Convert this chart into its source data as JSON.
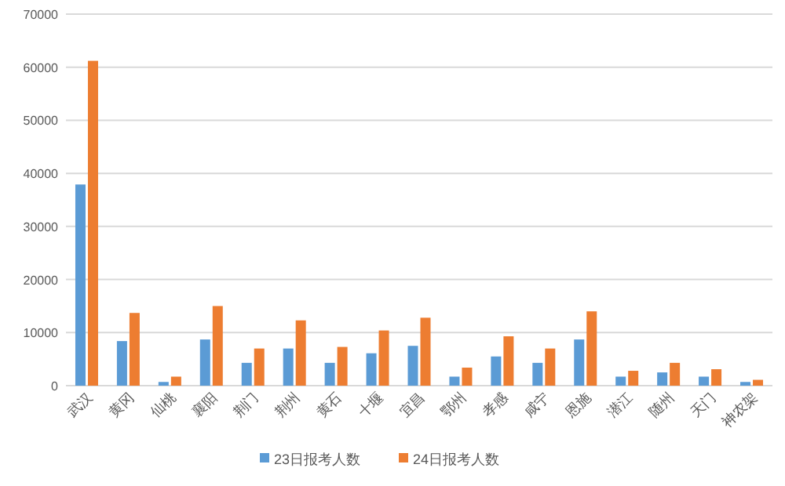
{
  "chart_data": {
    "type": "bar",
    "categories": [
      "武汉",
      "黄冈",
      "仙桃",
      "襄阳",
      "荆门",
      "荆州",
      "黄石",
      "十堰",
      "宜昌",
      "鄂州",
      "孝感",
      "咸宁",
      "恩施",
      "潜江",
      "随州",
      "天门",
      "神农架"
    ],
    "series": [
      {
        "name": "23日报考人数",
        "color": "#5b9bd5",
        "values": [
          37900,
          8400,
          700,
          8700,
          4300,
          7000,
          4300,
          6100,
          7500,
          1700,
          5500,
          4300,
          8700,
          1700,
          2500,
          1700,
          700
        ]
      },
      {
        "name": "24日报考人数",
        "color": "#ed7d31",
        "values": [
          61200,
          13700,
          1700,
          15000,
          7000,
          12300,
          7300,
          10400,
          12800,
          3400,
          9300,
          7000,
          14000,
          2800,
          4300,
          3100,
          1100
        ]
      }
    ],
    "ylim": [
      0,
      70000
    ],
    "yticks": [
      0,
      10000,
      20000,
      30000,
      40000,
      50000,
      60000,
      70000
    ],
    "grid": "y",
    "legend": "bottom"
  }
}
